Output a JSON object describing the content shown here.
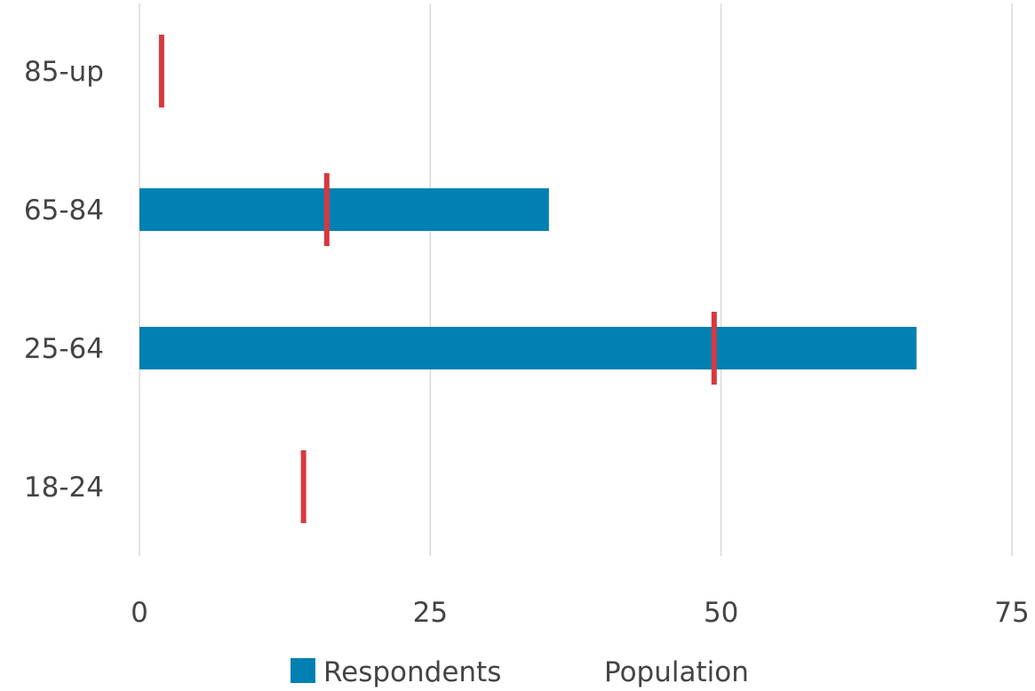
{
  "chart_data": {
    "type": "bar",
    "orientation": "horizontal",
    "categories": [
      "18-24",
      "25-64",
      "65-84",
      "85-up"
    ],
    "series": [
      {
        "name": "Respondents",
        "values": [
          0,
          66.8,
          35.2,
          0
        ],
        "color": "#0080b3",
        "style": "bar"
      },
      {
        "name": "Population",
        "values": [
          14.1,
          49.4,
          16.1,
          1.9
        ],
        "color": "#d6393e",
        "style": "marker"
      }
    ],
    "xlim": [
      0,
      75
    ],
    "xticks": [
      "0",
      "25",
      "50",
      "75"
    ],
    "grid": "vertical",
    "legend_position": "bottom"
  }
}
